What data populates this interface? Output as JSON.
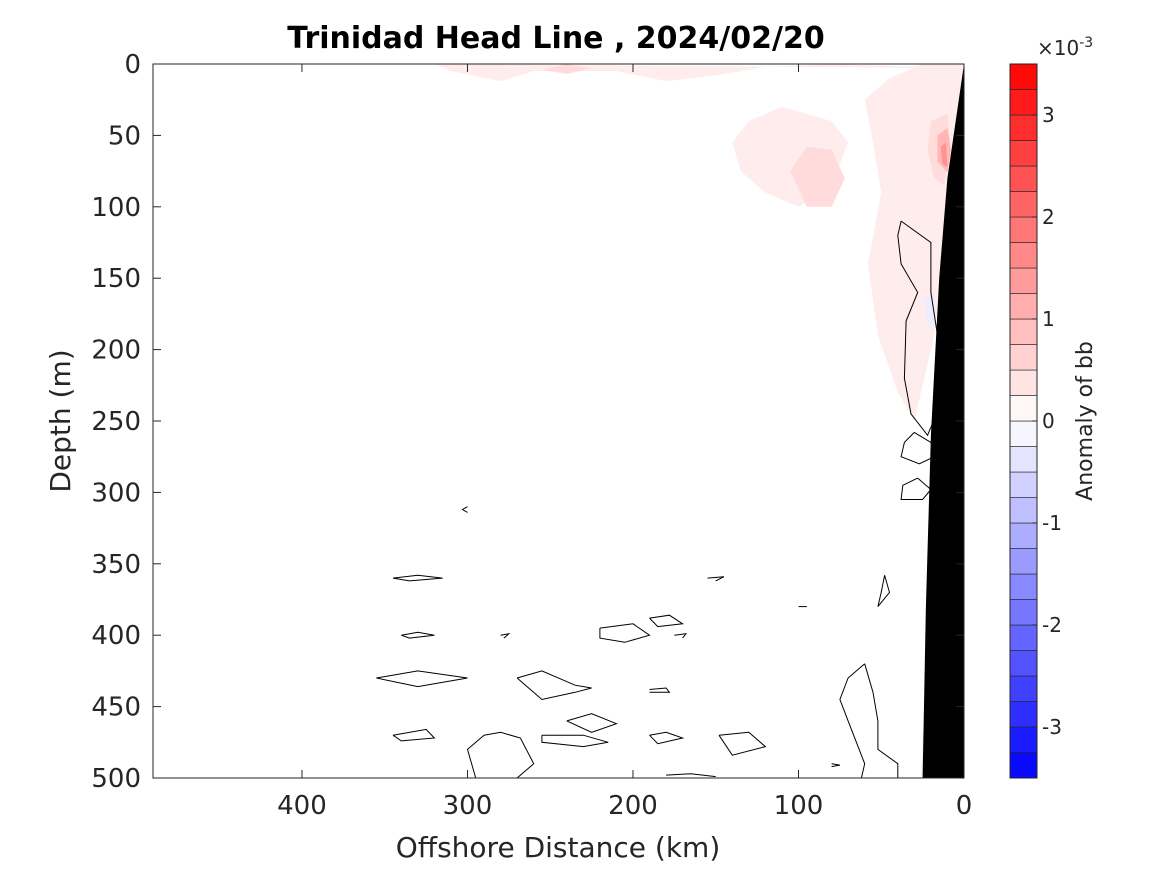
{
  "chart_data": {
    "type": "contour",
    "title": "Trinidad Head Line , 2024/02/20",
    "xlabel": "Offshore Distance (km)",
    "ylabel": "Depth (m)",
    "xlim": [
      490,
      0
    ],
    "ylim": [
      500,
      0
    ],
    "x_axis_reversed": true,
    "y_axis_reversed": true,
    "xticks": [
      400,
      300,
      200,
      100,
      0
    ],
    "yticks": [
      0,
      50,
      100,
      150,
      200,
      250,
      300,
      350,
      400,
      450,
      500
    ],
    "colorbar": {
      "label": "Anomaly of bb",
      "exponent_base": "×10",
      "exponent_power": "-3",
      "range": [
        -3.5,
        3.5
      ],
      "ticks": [
        -3,
        -2,
        -1,
        0,
        1,
        2,
        3
      ],
      "levels": [
        -3.5,
        -3.25,
        -3,
        -2.75,
        -2.5,
        -2.25,
        -2,
        -1.75,
        -1.5,
        -1.25,
        -1,
        -0.75,
        -0.5,
        -0.25,
        0,
        0.25,
        0.5,
        0.75,
        1,
        1.25,
        1.5,
        1.75,
        2,
        2.25,
        2.5,
        2.75,
        3,
        3.25,
        3.5
      ],
      "colormap": "blue-white-red",
      "neg_color": "#0000ff",
      "pos_color": "#ff0000",
      "zero_color": "#ffffff"
    },
    "bathymetry": {
      "color": "#000000",
      "points": [
        [
          0,
          0
        ],
        [
          10,
          80
        ],
        [
          15,
          150
        ],
        [
          20,
          260
        ],
        [
          23,
          380
        ],
        [
          25,
          500
        ],
        [
          0,
          500
        ]
      ]
    },
    "positive_regions": [
      {
        "level": 0.25,
        "points": [
          [
            0,
            3
          ],
          [
            80,
            0
          ],
          [
            120,
            2
          ],
          [
            150,
            8
          ],
          [
            180,
            12
          ],
          [
            210,
            5
          ],
          [
            260,
            5
          ],
          [
            280,
            12
          ],
          [
            310,
            5
          ],
          [
            320,
            0
          ]
        ]
      },
      {
        "level": 0.25,
        "points": [
          [
            0,
            0
          ],
          [
            25,
            0
          ],
          [
            45,
            10
          ],
          [
            60,
            25
          ],
          [
            55,
            55
          ],
          [
            50,
            90
          ],
          [
            58,
            140
          ],
          [
            52,
            190
          ],
          [
            40,
            230
          ],
          [
            30,
            250
          ],
          [
            20,
            200
          ],
          [
            12,
            150
          ],
          [
            5,
            80
          ],
          [
            0,
            30
          ]
        ]
      },
      {
        "level": 0.25,
        "points": [
          [
            80,
            40
          ],
          [
            110,
            30
          ],
          [
            130,
            40
          ],
          [
            140,
            55
          ],
          [
            135,
            75
          ],
          [
            120,
            90
          ],
          [
            100,
            100
          ],
          [
            85,
            90
          ],
          [
            75,
            70
          ],
          [
            70,
            55
          ]
        ]
      },
      {
        "level": 0.5,
        "points": [
          [
            80,
            60
          ],
          [
            95,
            58
          ],
          [
            105,
            75
          ],
          [
            95,
            100
          ],
          [
            80,
            100
          ],
          [
            72,
            80
          ]
        ]
      },
      {
        "level": 0.5,
        "points": [
          [
            10,
            35
          ],
          [
            20,
            40
          ],
          [
            22,
            60
          ],
          [
            18,
            80
          ],
          [
            12,
            85
          ],
          [
            8,
            60
          ]
        ]
      },
      {
        "level": 1.0,
        "points": [
          [
            10,
            45
          ],
          [
            16,
            50
          ],
          [
            16,
            68
          ],
          [
            10,
            76
          ],
          [
            8,
            60
          ]
        ]
      },
      {
        "level": 1.5,
        "points": [
          [
            11,
            55
          ],
          [
            14,
            58
          ],
          [
            13,
            70
          ],
          [
            10,
            72
          ]
        ]
      },
      {
        "level": 0.5,
        "points": [
          [
            225,
            3
          ],
          [
            240,
            0
          ],
          [
            255,
            4
          ],
          [
            240,
            7
          ]
        ]
      },
      {
        "level": 0.25,
        "points": [
          [
            20,
            460
          ],
          [
            25,
            470
          ],
          [
            26,
            500
          ],
          [
            20,
            500
          ]
        ]
      }
    ],
    "negative_regions": [
      {
        "level": -0.25,
        "points": [
          [
            18,
            160
          ],
          [
            24,
            165
          ],
          [
            22,
            185
          ],
          [
            17,
            180
          ]
        ]
      }
    ],
    "zero_contours": [
      [
        [
          38,
          110
        ],
        [
          20,
          125
        ],
        [
          20,
          160
        ],
        [
          12,
          220
        ],
        [
          15,
          240
        ],
        [
          22,
          260
        ],
        [
          32,
          245
        ],
        [
          36,
          220
        ],
        [
          35,
          180
        ],
        [
          28,
          160
        ],
        [
          38,
          140
        ],
        [
          40,
          120
        ],
        [
          38,
          110
        ]
      ],
      [
        [
          30,
          258
        ],
        [
          20,
          265
        ],
        [
          18,
          275
        ],
        [
          27,
          280
        ],
        [
          38,
          275
        ],
        [
          36,
          265
        ],
        [
          30,
          258
        ]
      ],
      [
        [
          28,
          290
        ],
        [
          20,
          298
        ],
        [
          25,
          305
        ],
        [
          38,
          305
        ],
        [
          37,
          295
        ],
        [
          28,
          290
        ]
      ],
      [
        [
          48,
          358
        ],
        [
          45,
          370
        ],
        [
          52,
          380
        ],
        [
          50,
          370
        ],
        [
          48,
          358
        ]
      ],
      [
        [
          60,
          420
        ],
        [
          55,
          440
        ],
        [
          52,
          460
        ],
        [
          52,
          480
        ],
        [
          40,
          490
        ],
        [
          40,
          500
        ]
      ],
      [
        [
          60,
          420
        ],
        [
          70,
          430
        ],
        [
          75,
          445
        ],
        [
          70,
          460
        ],
        [
          65,
          475
        ],
        [
          60,
          490
        ],
        [
          62,
          500
        ]
      ],
      [
        [
          345,
          360
        ],
        [
          330,
          358
        ],
        [
          315,
          360
        ],
        [
          335,
          362
        ],
        [
          345,
          360
        ]
      ],
      [
        [
          340,
          400
        ],
        [
          330,
          398
        ],
        [
          320,
          400
        ],
        [
          335,
          402
        ],
        [
          340,
          400
        ]
      ],
      [
        [
          355,
          430
        ],
        [
          330,
          425
        ],
        [
          300,
          430
        ],
        [
          330,
          436
        ],
        [
          355,
          430
        ]
      ],
      [
        [
          345,
          470
        ],
        [
          325,
          466
        ],
        [
          320,
          472
        ],
        [
          340,
          474
        ],
        [
          345,
          470
        ]
      ],
      [
        [
          300,
          310
        ],
        [
          303,
          312
        ],
        [
          300,
          314
        ]
      ],
      [
        [
          270,
          430
        ],
        [
          255,
          425
        ],
        [
          235,
          435
        ],
        [
          225,
          437
        ],
        [
          235,
          440
        ],
        [
          255,
          445
        ],
        [
          270,
          430
        ]
      ],
      [
        [
          220,
          395
        ],
        [
          200,
          392
        ],
        [
          190,
          400
        ],
        [
          205,
          405
        ],
        [
          220,
          402
        ],
        [
          220,
          395
        ]
      ],
      [
        [
          190,
          388
        ],
        [
          178,
          386
        ],
        [
          170,
          392
        ],
        [
          185,
          394
        ],
        [
          190,
          388
        ]
      ],
      [
        [
          240,
          460
        ],
        [
          225,
          455
        ],
        [
          210,
          462
        ],
        [
          225,
          468
        ],
        [
          240,
          460
        ]
      ],
      [
        [
          255,
          470
        ],
        [
          230,
          470
        ],
        [
          215,
          475
        ],
        [
          230,
          478
        ],
        [
          255,
          475
        ],
        [
          255,
          470
        ]
      ],
      [
        [
          290,
          470
        ],
        [
          280,
          468
        ],
        [
          268,
          472
        ],
        [
          260,
          490
        ],
        [
          270,
          500
        ]
      ],
      [
        [
          290,
          470
        ],
        [
          300,
          480
        ],
        [
          295,
          500
        ]
      ],
      [
        [
          190,
          470
        ],
        [
          180,
          468
        ],
        [
          170,
          472
        ],
        [
          185,
          476
        ],
        [
          190,
          470
        ]
      ],
      [
        [
          148,
          470
        ],
        [
          130,
          468
        ],
        [
          120,
          478
        ],
        [
          140,
          484
        ],
        [
          148,
          470
        ]
      ],
      [
        [
          190,
          438
        ],
        [
          180,
          437
        ],
        [
          178,
          440
        ],
        [
          190,
          440
        ]
      ],
      [
        [
          155,
          360
        ],
        [
          145,
          359
        ],
        [
          150,
          362
        ]
      ],
      [
        [
          280,
          400
        ],
        [
          275,
          399
        ],
        [
          278,
          402
        ]
      ],
      [
        [
          175,
          400
        ],
        [
          168,
          399
        ],
        [
          170,
          402
        ]
      ],
      [
        [
          100,
          380
        ],
        [
          95,
          380
        ]
      ],
      [
        [
          80,
          490
        ],
        [
          75,
          491
        ],
        [
          80,
          492
        ]
      ],
      [
        [
          180,
          498
        ],
        [
          165,
          497
        ],
        [
          150,
          499
        ]
      ]
    ]
  }
}
